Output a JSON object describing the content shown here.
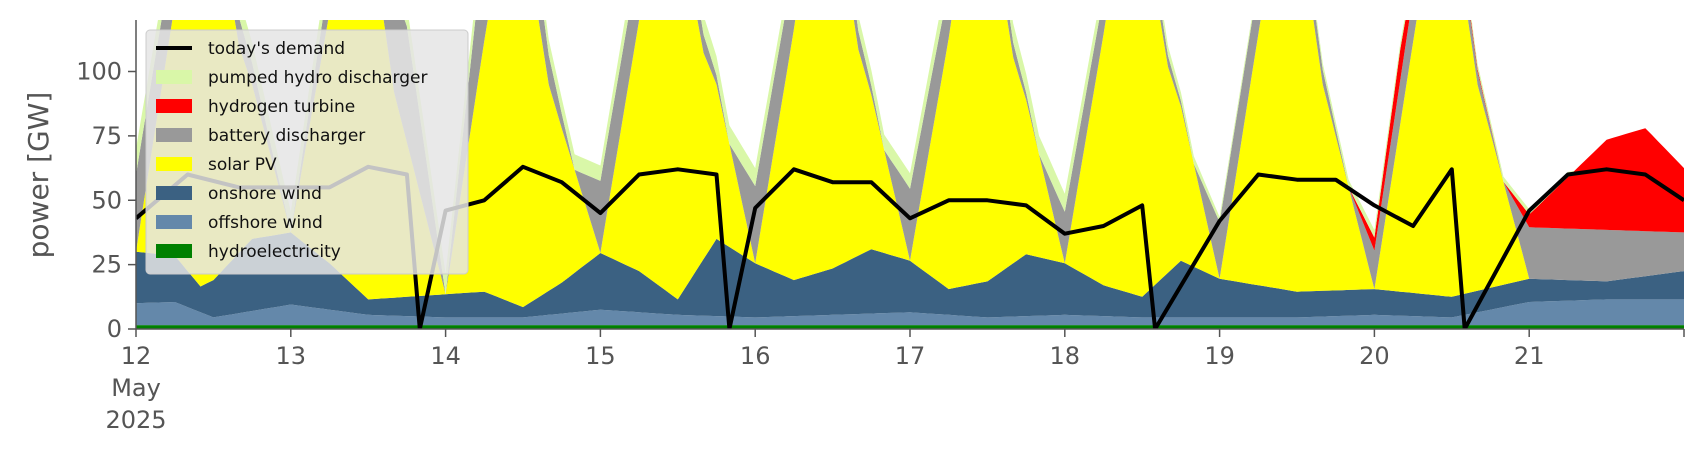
{
  "chart_data": {
    "type": "area",
    "title": "",
    "xlabel": "",
    "ylabel": "power [GW]",
    "ylim": [
      0,
      120
    ],
    "xlim": [
      "2025-05-12 00:00",
      "2025-05-22 00:00"
    ],
    "y_ticks": [
      0,
      25,
      50,
      75,
      100
    ],
    "x_ticks": [
      {
        "date": "2025-05-12",
        "label": "12",
        "sublabel": [
          "May",
          "2025"
        ]
      },
      {
        "date": "2025-05-13",
        "label": "13"
      },
      {
        "date": "2025-05-14",
        "label": "14"
      },
      {
        "date": "2025-05-15",
        "label": "15"
      },
      {
        "date": "2025-05-16",
        "label": "16"
      },
      {
        "date": "2025-05-17",
        "label": "17"
      },
      {
        "date": "2025-05-18",
        "label": "18"
      },
      {
        "date": "2025-05-19",
        "label": "19"
      },
      {
        "date": "2025-05-20",
        "label": "20"
      },
      {
        "date": "2025-05-21",
        "label": "21"
      },
      {
        "date": "2025-05-22",
        "label": ""
      }
    ],
    "grid": false,
    "legend_position": "top-left",
    "stack_order": [
      "hydroelectricity",
      "offshore wind",
      "onshore wind",
      "solar PV",
      "battery discharger",
      "hydrogen turbine",
      "pumped hydro discharger"
    ],
    "legend": [
      {
        "name": "today's demand",
        "color": "#000000",
        "kind": "line"
      },
      {
        "name": "pumped hydro discharger",
        "color": "#d9f7a8",
        "kind": "patch"
      },
      {
        "name": "hydrogen turbine",
        "color": "#ff0000",
        "kind": "patch"
      },
      {
        "name": "battery discharger",
        "color": "#999999",
        "kind": "patch"
      },
      {
        "name": "solar PV",
        "color": "#ffff00",
        "kind": "patch"
      },
      {
        "name": "onshore wind",
        "color": "#3b6182",
        "kind": "patch"
      },
      {
        "name": "offshore wind",
        "color": "#6488aa",
        "kind": "patch"
      },
      {
        "name": "hydroelectricity",
        "color": "#008000",
        "kind": "patch"
      }
    ],
    "series": [
      {
        "name": "hydroelectricity",
        "color": "#008000",
        "x": [
          "2025-05-12 00:00",
          "2025-05-13 00:00",
          "2025-05-14 00:00",
          "2025-05-15 00:00",
          "2025-05-16 00:00",
          "2025-05-17 00:00",
          "2025-05-18 00:00",
          "2025-05-19 00:00",
          "2025-05-20 00:00",
          "2025-05-21 00:00",
          "2025-05-22 00:00"
        ],
        "values": [
          1.5,
          1.5,
          1.5,
          1.5,
          1.5,
          1.5,
          1.5,
          1.5,
          1.5,
          1.5,
          1.5
        ]
      },
      {
        "name": "offshore wind",
        "color": "#6488aa",
        "x": [
          "2025-05-12 00:00",
          "2025-05-12 06:00",
          "2025-05-12 12:00",
          "2025-05-13 00:00",
          "2025-05-13 12:00",
          "2025-05-14 00:00",
          "2025-05-14 12:00",
          "2025-05-15 00:00",
          "2025-05-15 12:00",
          "2025-05-16 00:00",
          "2025-05-16 12:00",
          "2025-05-17 00:00",
          "2025-05-17 12:00",
          "2025-05-18 00:00",
          "2025-05-18 12:00",
          "2025-05-19 00:00",
          "2025-05-19 12:00",
          "2025-05-20 00:00",
          "2025-05-20 12:00",
          "2025-05-21 00:00",
          "2025-05-21 12:00",
          "2025-05-22 00:00"
        ],
        "values": [
          8.5,
          9,
          3,
          8,
          4,
          3,
          3,
          6,
          4,
          3,
          4,
          5,
          3,
          4,
          3,
          3,
          3,
          4,
          3,
          9,
          10,
          10
        ]
      },
      {
        "name": "onshore wind",
        "color": "#3b6182",
        "x": [
          "2025-05-12 00:00",
          "2025-05-12 06:00",
          "2025-05-12 10:00",
          "2025-05-12 18:00",
          "2025-05-13 00:00",
          "2025-05-13 06:00",
          "2025-05-13 12:00",
          "2025-05-14 00:00",
          "2025-05-14 06:00",
          "2025-05-14 12:00",
          "2025-05-14 18:00",
          "2025-05-15 00:00",
          "2025-05-15 06:00",
          "2025-05-15 12:00",
          "2025-05-15 18:00",
          "2025-05-16 00:00",
          "2025-05-16 06:00",
          "2025-05-16 12:00",
          "2025-05-16 18:00",
          "2025-05-17 00:00",
          "2025-05-17 06:00",
          "2025-05-17 12:00",
          "2025-05-17 18:00",
          "2025-05-18 00:00",
          "2025-05-18 06:00",
          "2025-05-18 12:00",
          "2025-05-18 18:00",
          "2025-05-19 00:00",
          "2025-05-19 12:00",
          "2025-05-20 00:00",
          "2025-05-20 12:00",
          "2025-05-21 00:00",
          "2025-05-21 12:00",
          "2025-05-22 00:00"
        ],
        "values": [
          20,
          18,
          10,
          28,
          28,
          18,
          6,
          9,
          10,
          4,
          12,
          22,
          16,
          6,
          30,
          21,
          14,
          18,
          25,
          20,
          10,
          14,
          24,
          20,
          12,
          8,
          22,
          15,
          10,
          10,
          8,
          9,
          7,
          11
        ]
      },
      {
        "name": "solar PV",
        "color": "#ffff00",
        "x": [
          "2025-05-12 00:00",
          "2025-05-12 08:00",
          "2025-05-12 12:00",
          "2025-05-12 16:00",
          "2025-05-13 00:00",
          "2025-05-13 08:00",
          "2025-05-13 12:00",
          "2025-05-13 16:00",
          "2025-05-14 00:00",
          "2025-05-14 08:00",
          "2025-05-14 12:00",
          "2025-05-14 16:00",
          "2025-05-15 00:00",
          "2025-05-15 08:00",
          "2025-05-15 12:00",
          "2025-05-15 16:00",
          "2025-05-16 00:00",
          "2025-05-16 08:00",
          "2025-05-16 12:00",
          "2025-05-16 16:00",
          "2025-05-17 00:00",
          "2025-05-17 08:00",
          "2025-05-17 12:00",
          "2025-05-17 16:00",
          "2025-05-18 00:00",
          "2025-05-18 08:00",
          "2025-05-18 12:00",
          "2025-05-18 16:00",
          "2025-05-19 00:00",
          "2025-05-19 08:00",
          "2025-05-19 12:00",
          "2025-05-19 16:00",
          "2025-05-20 00:00",
          "2025-05-20 08:00",
          "2025-05-20 12:00",
          "2025-05-20 16:00",
          "2025-05-21 00:00"
        ],
        "values": [
          0,
          130,
          150,
          80,
          0,
          130,
          150,
          80,
          0,
          130,
          150,
          80,
          0,
          130,
          150,
          80,
          0,
          130,
          150,
          80,
          0,
          130,
          150,
          80,
          0,
          130,
          150,
          80,
          0,
          130,
          150,
          80,
          0,
          130,
          150,
          80,
          0
        ]
      },
      {
        "name": "battery discharger",
        "color": "#999999",
        "x": [
          "2025-05-12 00:00",
          "2025-05-12 06:00",
          "2025-05-13 00:00",
          "2025-05-13 18:00",
          "2025-05-14 00:00",
          "2025-05-14 06:00",
          "2025-05-14 20:00",
          "2025-05-15 00:00",
          "2025-05-15 06:00",
          "2025-05-15 20:00",
          "2025-05-16 00:00",
          "2025-05-16 06:00",
          "2025-05-16 20:00",
          "2025-05-17 00:00",
          "2025-05-17 06:00",
          "2025-05-17 20:00",
          "2025-05-18 00:00",
          "2025-05-18 06:00",
          "2025-05-18 20:00",
          "2025-05-19 00:00",
          "2025-05-19 06:00",
          "2025-05-19 20:00",
          "2025-05-20 00:00",
          "2025-05-20 06:00",
          "2025-05-20 20:00",
          "2025-05-21 00:00",
          "2025-05-21 12:00",
          "2025-05-22 00:00"
        ],
        "values": [
          30,
          25,
          0,
          45,
          0,
          40,
          0,
          28,
          25,
          0,
          30,
          25,
          0,
          28,
          20,
          0,
          20,
          15,
          0,
          22,
          20,
          0,
          15,
          18,
          0,
          20,
          20,
          15
        ]
      },
      {
        "name": "hydrogen turbine",
        "color": "#ff0000",
        "x": [
          "2025-05-19 20:00",
          "2025-05-20 00:00",
          "2025-05-20 04:00",
          "2025-05-20 08:00",
          "2025-05-20 20:00",
          "2025-05-21 00:00",
          "2025-05-21 06:00",
          "2025-05-21 12:00",
          "2025-05-21 18:00",
          "2025-05-22 00:00"
        ],
        "values": [
          0,
          5,
          12,
          3,
          0,
          5,
          20,
          35,
          40,
          25
        ]
      },
      {
        "name": "pumped hydro discharger",
        "color": "#d9f7a8",
        "x": [
          "2025-05-12 00:00",
          "2025-05-12 04:00",
          "2025-05-14 04:00",
          "2025-05-14 10:00",
          "2025-05-15 00:00",
          "2025-05-15 06:00",
          "2025-05-16 00:00",
          "2025-05-16 06:00",
          "2025-05-17 00:00",
          "2025-05-17 06:00",
          "2025-05-18 00:00",
          "2025-05-18 06:00",
          "2025-05-19 00:00",
          "2025-05-19 06:00",
          "2025-05-20 00:00",
          "2025-05-20 06:00",
          "2025-05-21 00:00",
          "2025-05-21 06:00"
        ],
        "values": [
          10,
          8,
          8,
          6,
          6,
          8,
          7,
          6,
          6,
          8,
          7,
          6,
          2,
          2,
          3,
          2,
          2,
          2
        ]
      },
      {
        "name": "today's demand",
        "color": "#000000",
        "x": [
          "2025-05-12 00:00",
          "2025-05-12 08:00",
          "2025-05-12 16:00",
          "2025-05-13 06:00",
          "2025-05-13 12:00",
          "2025-05-13 18:00",
          "2025-05-13 20:00",
          "2025-05-14 00:00",
          "2025-05-14 06:00",
          "2025-05-14 12:00",
          "2025-05-14 18:00",
          "2025-05-15 00:00",
          "2025-05-15 06:00",
          "2025-05-15 12:00",
          "2025-05-15 18:00",
          "2025-05-15 20:00",
          "2025-05-16 00:00",
          "2025-05-16 06:00",
          "2025-05-16 12:00",
          "2025-05-16 18:00",
          "2025-05-17 00:00",
          "2025-05-17 06:00",
          "2025-05-17 12:00",
          "2025-05-17 18:00",
          "2025-05-18 00:00",
          "2025-05-18 06:00",
          "2025-05-18 12:00",
          "2025-05-18 14:00",
          "2025-05-19 00:00",
          "2025-05-19 06:00",
          "2025-05-19 12:00",
          "2025-05-19 18:00",
          "2025-05-20 00:00",
          "2025-05-20 06:00",
          "2025-05-20 12:00",
          "2025-05-20 14:00",
          "2025-05-21 00:00",
          "2025-05-21 06:00",
          "2025-05-21 12:00",
          "2025-05-21 18:00",
          "2025-05-22 00:00"
        ],
        "values": [
          43,
          60,
          55,
          55,
          63,
          60,
          0,
          46,
          50,
          63,
          57,
          45,
          60,
          62,
          60,
          0,
          47,
          62,
          57,
          57,
          43,
          50,
          50,
          48,
          37,
          40,
          48,
          0,
          42,
          60,
          58,
          58,
          48,
          40,
          62,
          0,
          46,
          60,
          62,
          60,
          50
        ]
      }
    ]
  }
}
